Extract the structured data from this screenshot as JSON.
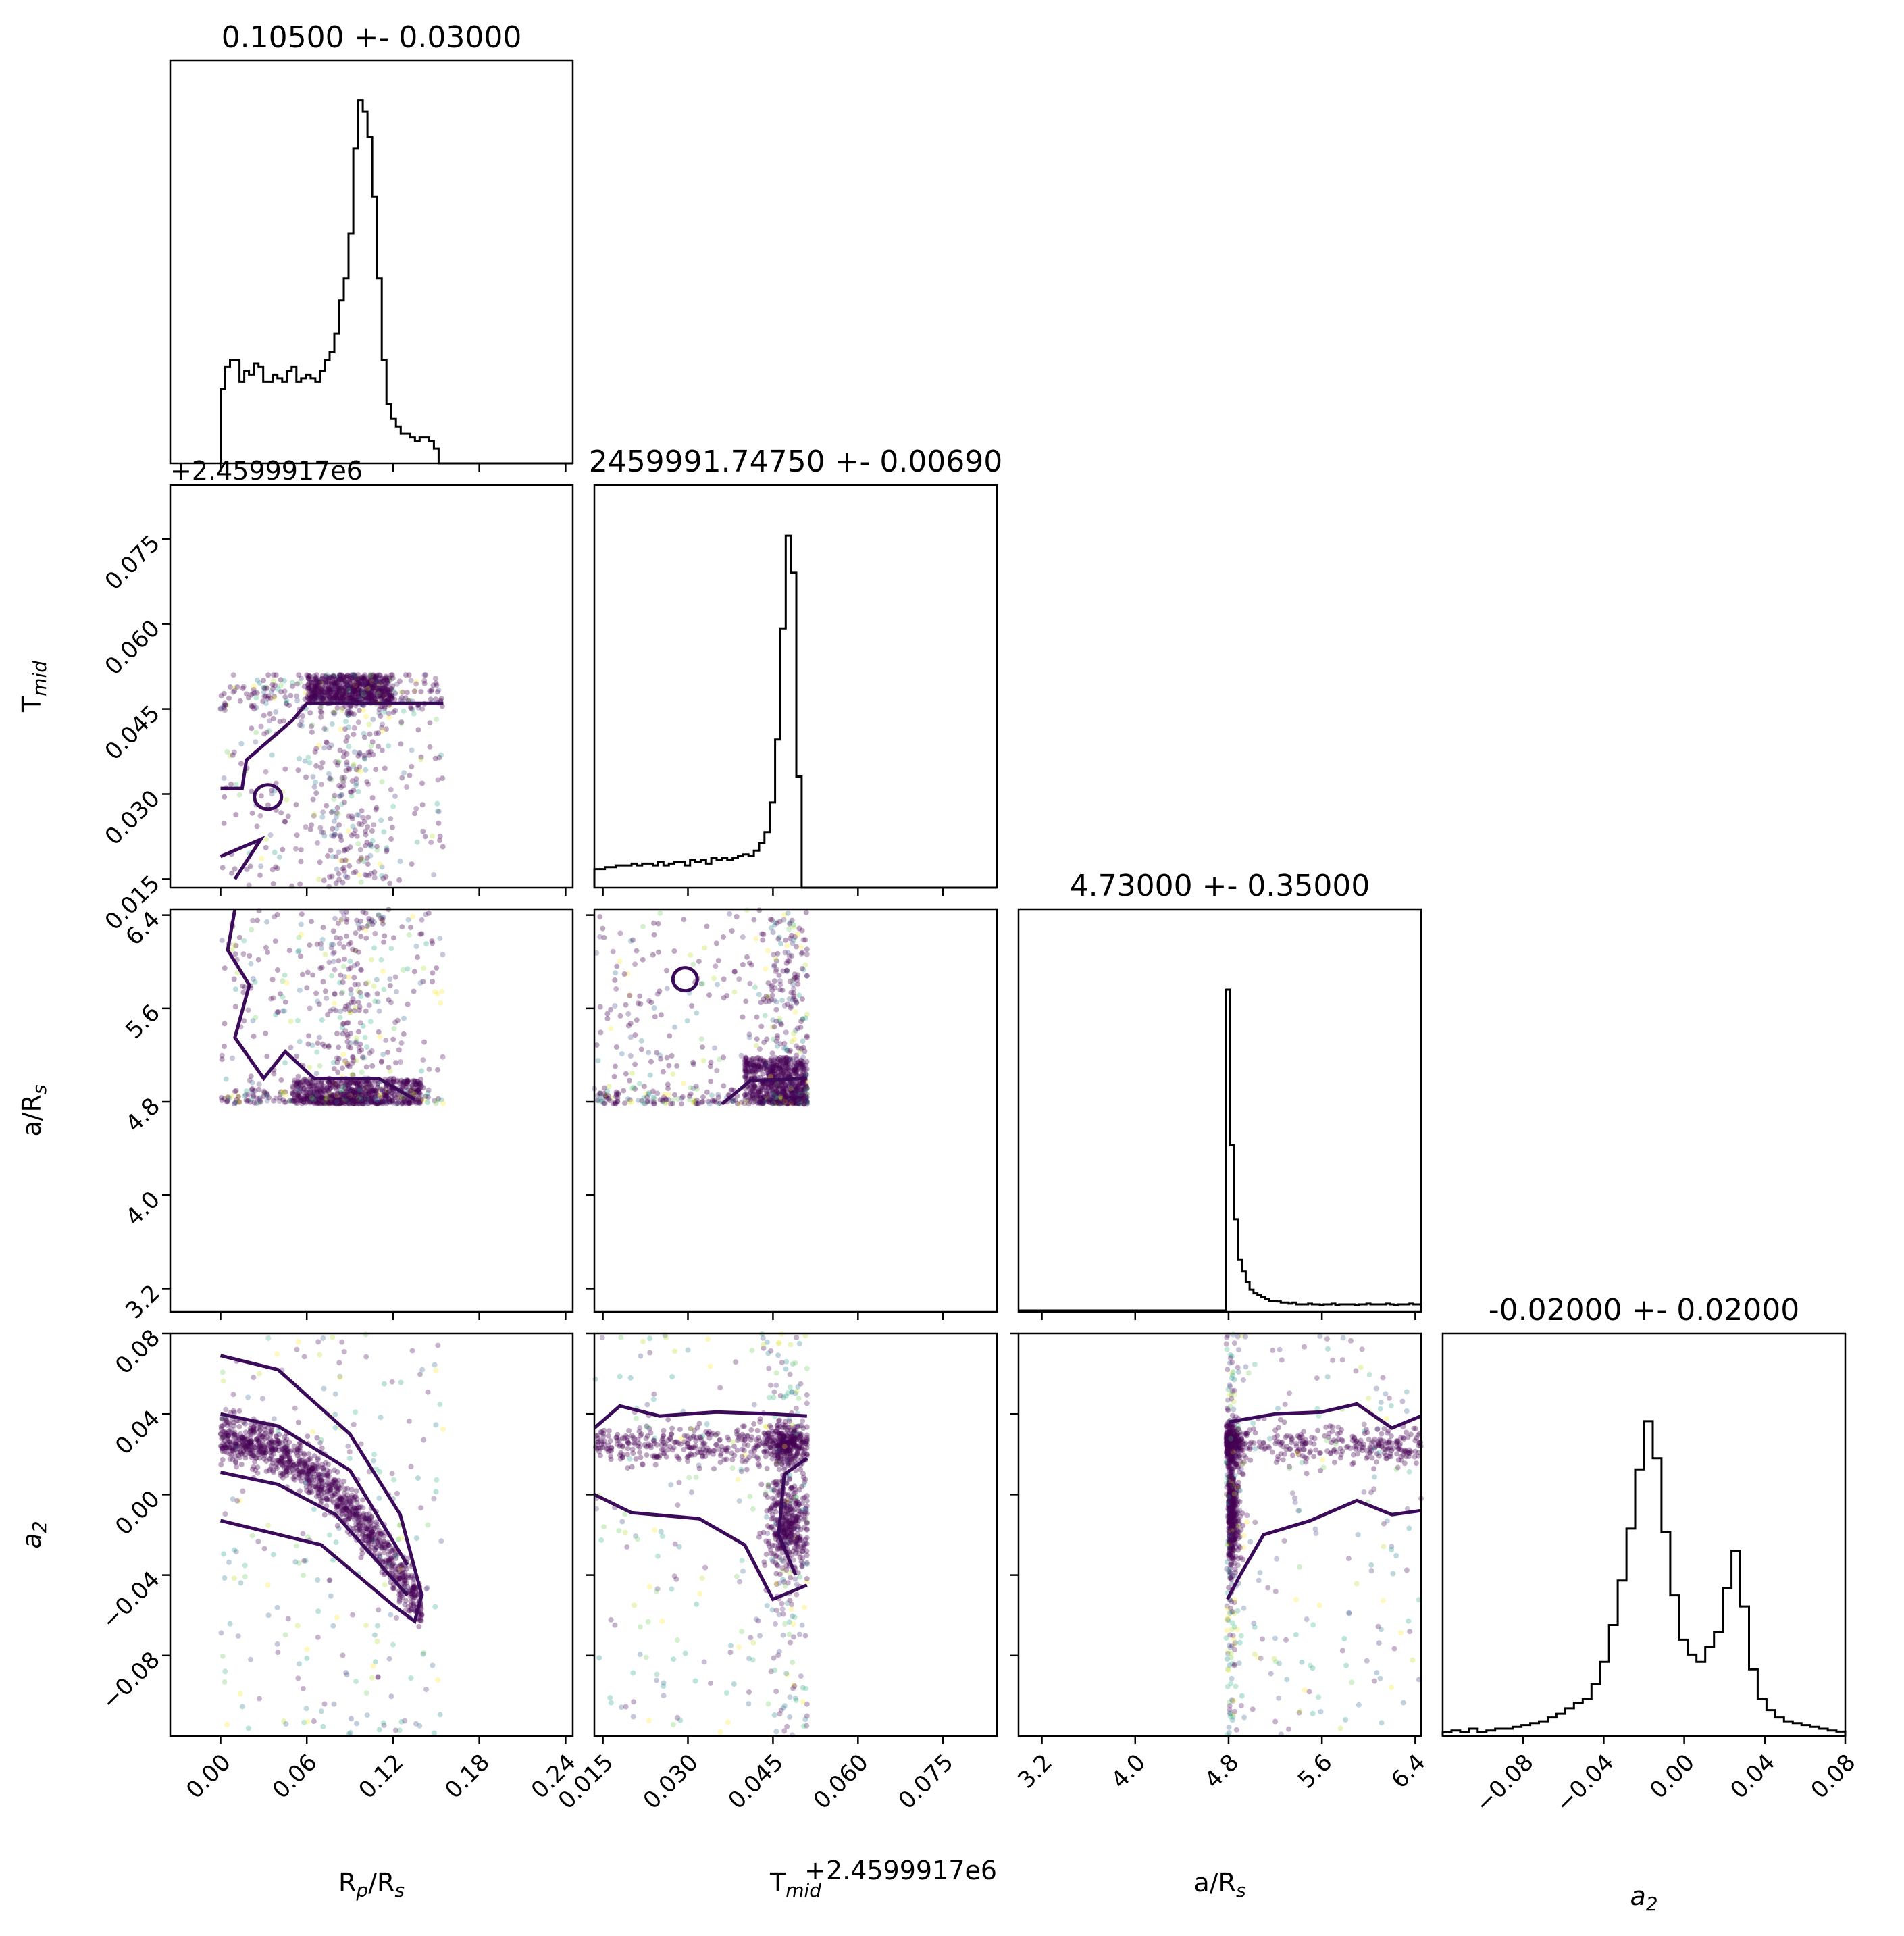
{
  "chart_data": {
    "type": "scatter",
    "parameters": [
      {
        "key": "rp",
        "label": "R",
        "sub1": "p",
        "mid": "/R",
        "sub2": "s",
        "title": "0.10500 +- 0.03000",
        "range": [
          -0.035,
          0.245
        ],
        "ticks": [
          "0.00",
          "0.06",
          "0.12",
          "0.18",
          "0.24"
        ],
        "tick_values": [
          0,
          0.06,
          0.12,
          0.18,
          0.24
        ]
      },
      {
        "key": "tmid",
        "label": "T",
        "sub1": "mid",
        "mid": "",
        "sub2": "",
        "title": "2459991.74750 +- 0.00690",
        "offset_text": "+2.4599917e6",
        "range": [
          0.0135,
          0.0845
        ],
        "ticks": [
          "0.015",
          "0.030",
          "0.045",
          "0.060",
          "0.075"
        ],
        "tick_values": [
          0.015,
          0.03,
          0.045,
          0.06,
          0.075
        ]
      },
      {
        "key": "ars",
        "label": "a/R",
        "sub1": "s",
        "mid": "",
        "sub2": "",
        "title": "4.73000 +- 0.35000",
        "range": [
          3.0,
          6.45
        ],
        "ticks": [
          "3.2",
          "4.0",
          "4.8",
          "5.6",
          "6.4"
        ],
        "tick_values": [
          3.2,
          4.0,
          4.8,
          5.6,
          6.4
        ]
      },
      {
        "key": "a2",
        "label": "a",
        "sub1": "2",
        "mid": "",
        "sub2": "",
        "italic": true,
        "title": "-0.02000 +- 0.02000",
        "range": [
          -0.12,
          0.08
        ],
        "ticks": [
          "−0.08",
          "−0.04",
          "0.00",
          "0.04",
          "0.08"
        ],
        "tick_values": [
          -0.08,
          -0.04,
          0.0,
          0.04,
          0.08
        ]
      }
    ],
    "histograms": {
      "rp": {
        "bins": [
          0.0,
          0.155
        ],
        "heights": [
          0.2,
          0.26,
          0.28,
          0.28,
          0.22,
          0.25,
          0.24,
          0.27,
          0.26,
          0.22,
          0.22,
          0.24,
          0.23,
          0.22,
          0.25,
          0.26,
          0.22,
          0.23,
          0.24,
          0.23,
          0.22,
          0.25,
          0.28,
          0.3,
          0.35,
          0.44,
          0.5,
          0.62,
          0.85,
          0.98,
          0.95,
          0.88,
          0.72,
          0.5,
          0.28,
          0.16,
          0.12,
          0.1,
          0.08,
          0.08,
          0.07,
          0.06,
          0.07,
          0.07,
          0.06,
          0.04,
          0.0
        ]
      },
      "tmid": {
        "bins": [
          0.0135,
          0.051
        ],
        "heights": [
          0.05,
          0.05,
          0.055,
          0.055,
          0.06,
          0.06,
          0.06,
          0.065,
          0.06,
          0.065,
          0.065,
          0.06,
          0.07,
          0.06,
          0.065,
          0.07,
          0.07,
          0.06,
          0.075,
          0.07,
          0.075,
          0.065,
          0.08,
          0.075,
          0.08,
          0.075,
          0.08,
          0.085,
          0.09,
          0.085,
          0.1,
          0.12,
          0.15,
          0.23,
          0.4,
          0.7,
          0.95,
          0.85,
          0.3,
          0.0
        ]
      },
      "ars": {
        "bins": [
          4.78,
          6.45
        ],
        "heights": [
          0.87,
          0.45,
          0.25,
          0.14,
          0.11,
          0.08,
          0.06,
          0.05,
          0.045,
          0.04,
          0.035,
          0.03,
          0.03,
          0.028,
          0.025,
          0.025,
          0.022,
          0.025,
          0.02,
          0.02,
          0.02,
          0.022,
          0.02,
          0.02,
          0.018,
          0.02,
          0.02,
          0.022,
          0.018,
          0.02,
          0.02,
          0.02,
          0.02,
          0.018,
          0.02,
          0.02,
          0.022,
          0.02,
          0.02,
          0.02,
          0.02,
          0.022,
          0.02,
          0.018,
          0.02,
          0.02,
          0.02,
          0.022,
          0.02,
          0.02
        ]
      },
      "a2": {
        "bins": [
          -0.12,
          0.08
        ],
        "heights": [
          0.01,
          0.015,
          0.01,
          0.02,
          0.01,
          0.015,
          0.02,
          0.02,
          0.025,
          0.03,
          0.035,
          0.04,
          0.05,
          0.06,
          0.075,
          0.09,
          0.1,
          0.14,
          0.2,
          0.3,
          0.42,
          0.56,
          0.72,
          0.85,
          0.75,
          0.55,
          0.38,
          0.26,
          0.22,
          0.2,
          0.24,
          0.28,
          0.4,
          0.5,
          0.35,
          0.18,
          0.1,
          0.07,
          0.05,
          0.04,
          0.035,
          0.03,
          0.025,
          0.02,
          0.015,
          0.012
        ]
      }
    }
  }
}
